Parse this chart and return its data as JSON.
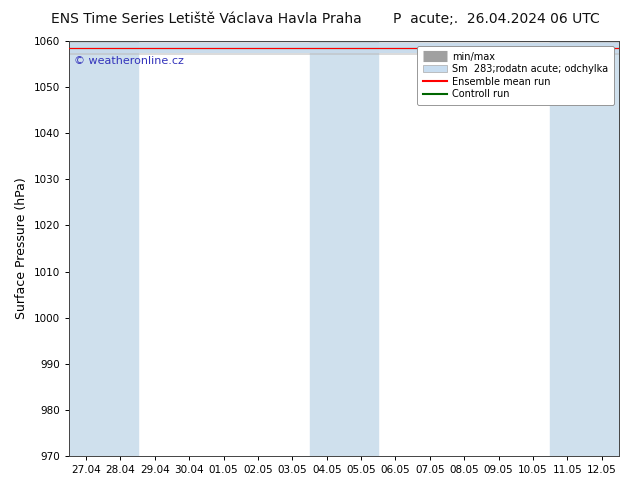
{
  "title_left": "ENS Time Series Letiště Václava Havla Praha",
  "title_right": "P  acute;.  26.04.2024 06 UTC",
  "ylabel": "Surface Pressure (hPa)",
  "ylim": [
    970,
    1060
  ],
  "yticks": [
    970,
    980,
    990,
    1000,
    1010,
    1020,
    1030,
    1040,
    1050,
    1060
  ],
  "xtick_labels": [
    "27.04",
    "28.04",
    "29.04",
    "30.04",
    "01.05",
    "02.05",
    "03.05",
    "04.05",
    "05.05",
    "06.05",
    "07.05",
    "08.05",
    "09.05",
    "10.05",
    "11.05",
    "12.05"
  ],
  "background_color": "#ffffff",
  "plot_bg_color": "#ffffff",
  "shaded_band_color": "#cfe0ed",
  "shaded_col_indices": [
    0,
    1,
    7,
    8,
    14,
    15
  ],
  "watermark_text": "© weatheronline.cz",
  "watermark_color": "#3333bb",
  "legend_minmax_color": "#a0a0a0",
  "legend_spread_color": "#c8ddf0",
  "legend_mean_color": "#ff0000",
  "legend_ctrl_color": "#006600",
  "title_fontsize": 10,
  "tick_fontsize": 7.5,
  "ylabel_fontsize": 9,
  "data_mean": 1058.5,
  "data_spread": 1.0,
  "data_minmax_extra": 0.5
}
